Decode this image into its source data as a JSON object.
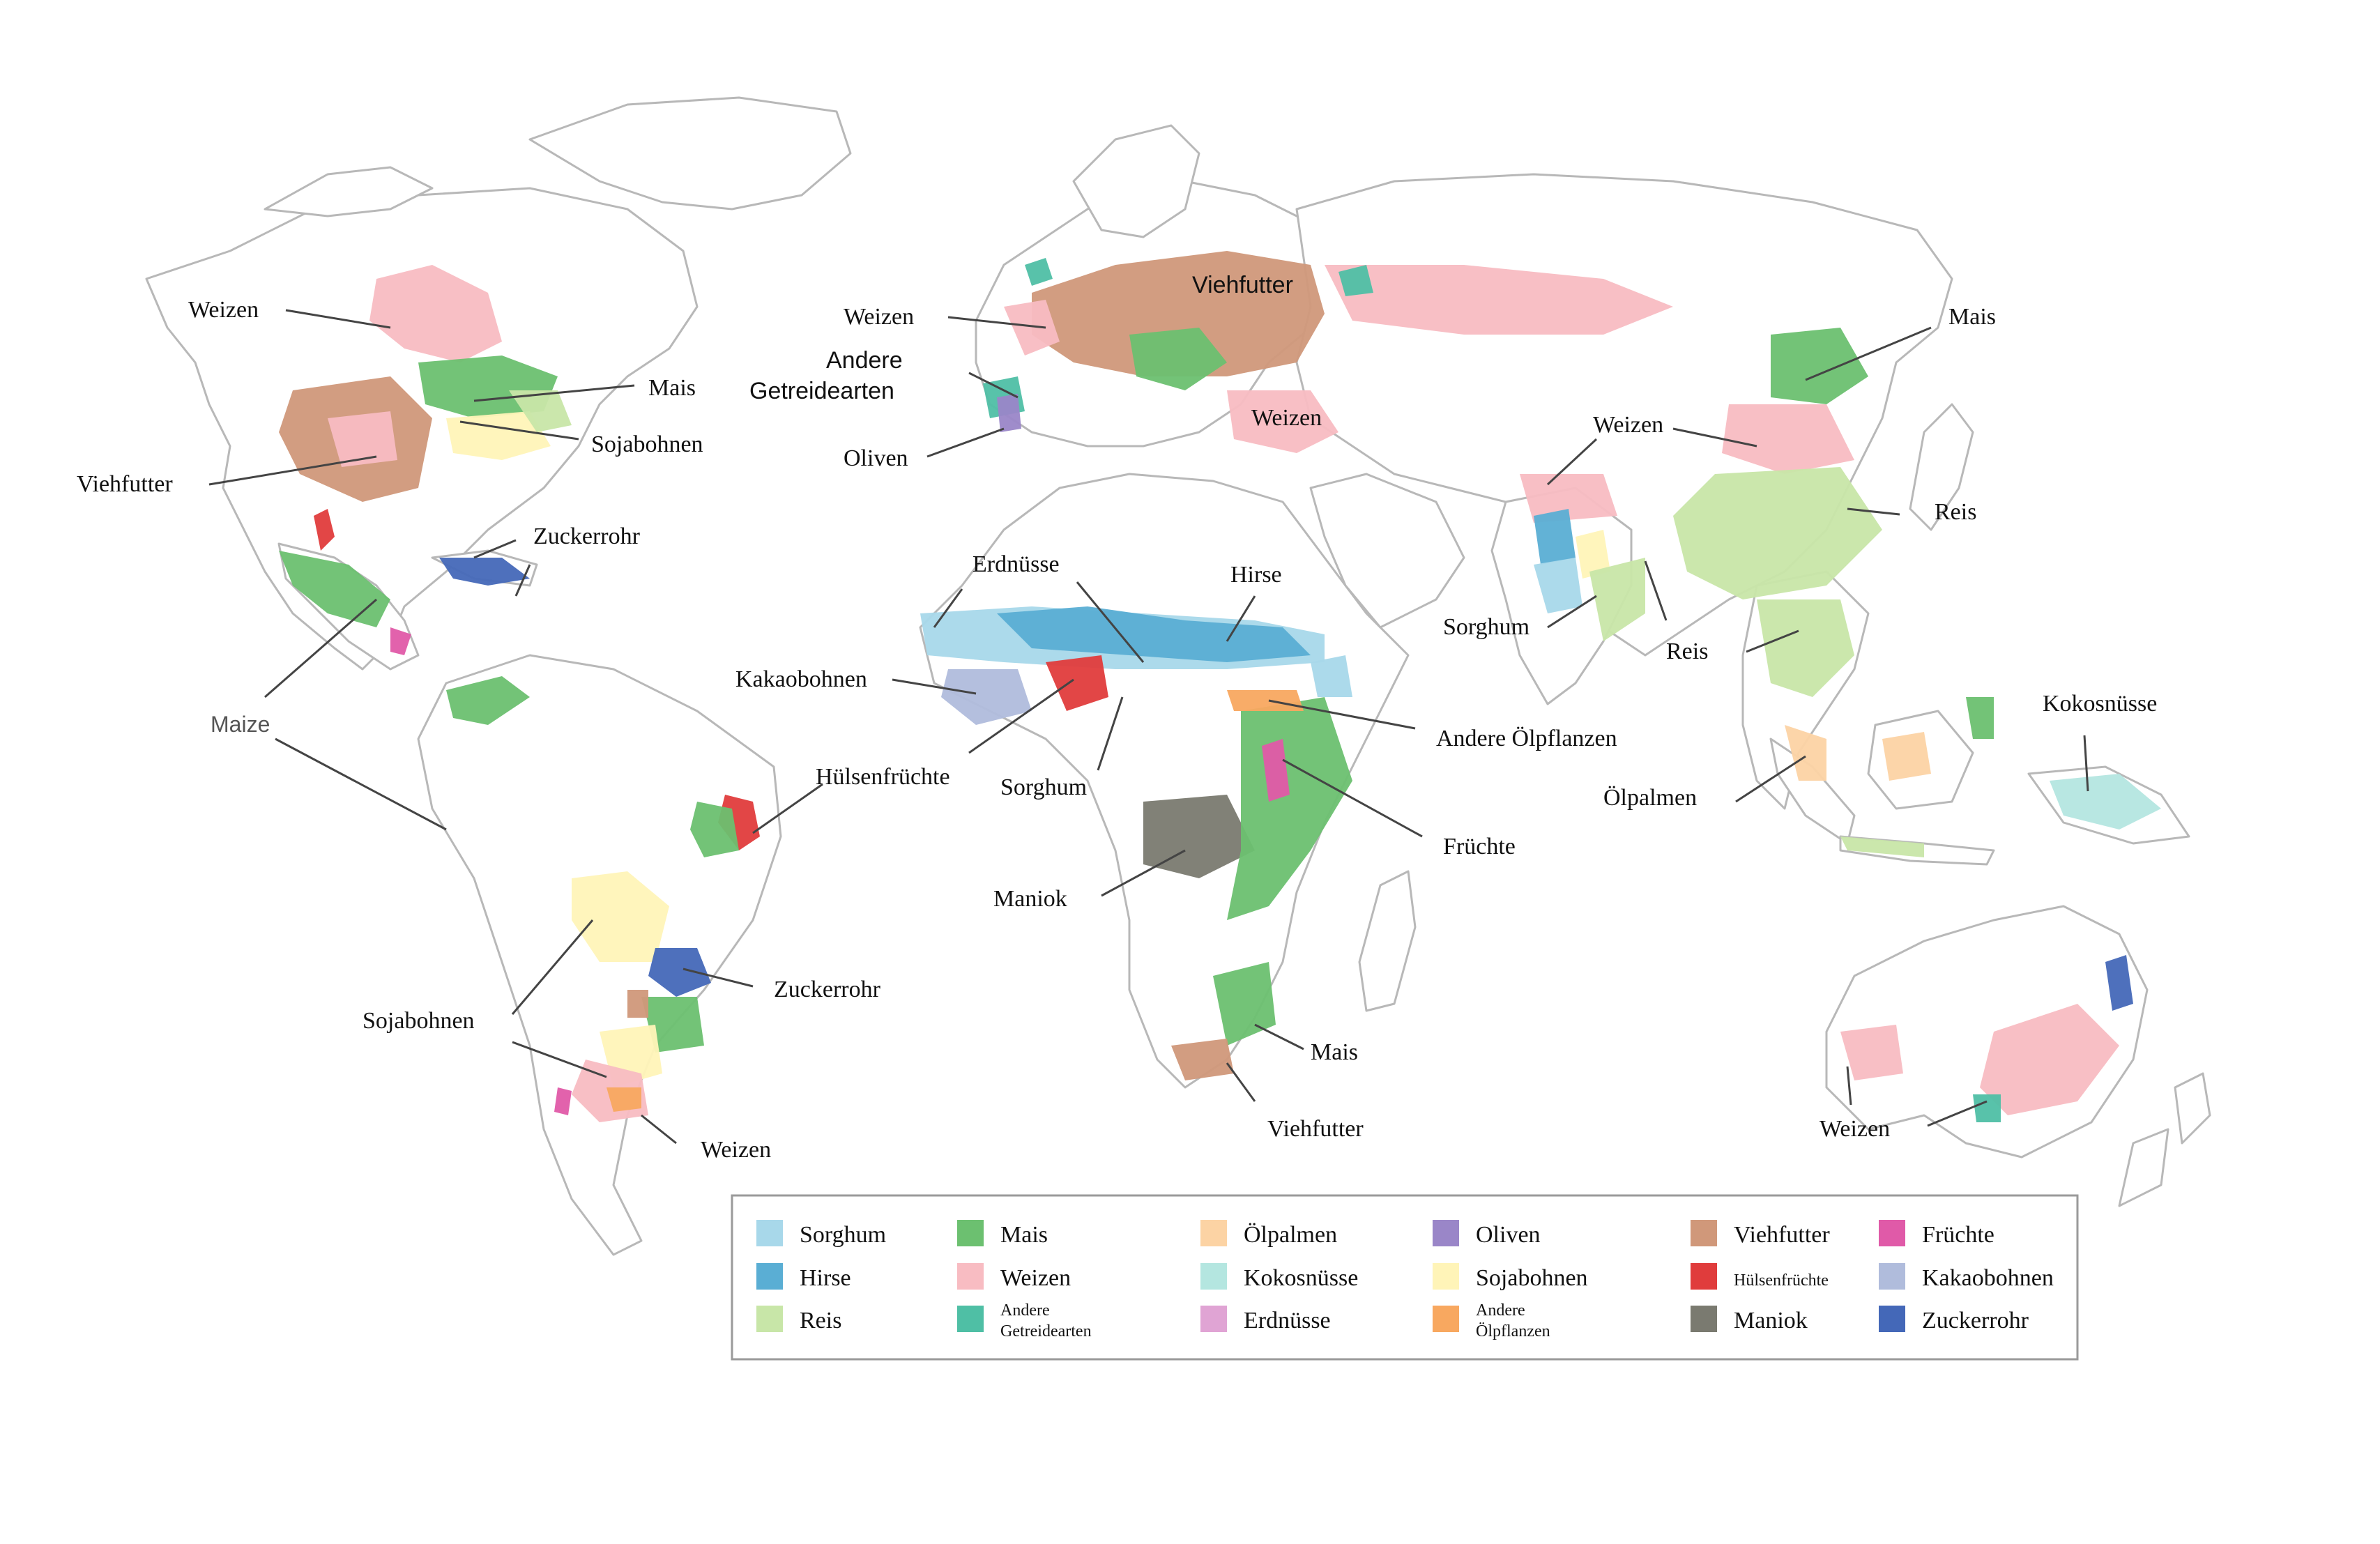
{
  "legend": {
    "items": [
      {
        "key": "sorghum",
        "label": "Sorghum",
        "color": "#a8d8ea"
      },
      {
        "key": "hirse",
        "label": "Hirse",
        "color": "#5aaed4"
      },
      {
        "key": "reis",
        "label": "Reis",
        "color": "#c8e6a8"
      },
      {
        "key": "mais",
        "label": "Mais",
        "color": "#6cc070"
      },
      {
        "key": "weizen",
        "label": "Weizen",
        "color": "#f8bcc2"
      },
      {
        "key": "andere_getreide",
        "label": "Andere Getreidearten",
        "color": "#4fbfa5"
      },
      {
        "key": "oelpalmen",
        "label": "Ölpalmen",
        "color": "#fcd3a4"
      },
      {
        "key": "kokos",
        "label": "Kokosnüsse",
        "color": "#b4e6e0"
      },
      {
        "key": "erdnuesse",
        "label": "Erdnüsse",
        "color": "#e0a4d4"
      },
      {
        "key": "oliven",
        "label": "Oliven",
        "color": "#9a86c8"
      },
      {
        "key": "soja",
        "label": "Sojabohnen",
        "color": "#fff4b8"
      },
      {
        "key": "andere_oel",
        "label": "Andere Ölpflanzen",
        "color": "#f8a860"
      },
      {
        "key": "viehfutter",
        "label": "Viehfutter",
        "color": "#d0987a"
      },
      {
        "key": "huelsen",
        "label": "Hülsenfrüchte",
        "color": "#e03c3c"
      },
      {
        "key": "maniok",
        "label": "Maniok",
        "color": "#7a7a70"
      },
      {
        "key": "fruechte",
        "label": "Früchte",
        "color": "#e05aa8"
      },
      {
        "key": "kakao",
        "label": "Kakaobohnen",
        "color": "#b0bcdc"
      },
      {
        "key": "zucker",
        "label": "Zuckerrohr",
        "color": "#4468b8"
      }
    ],
    "wrapped": {
      "andere_getreide": [
        "Andere",
        "Getreidearten"
      ],
      "andere_oel": [
        "Andere",
        "Ölpflanzen"
      ]
    }
  },
  "labels": {
    "na_weizen": "Weizen",
    "na_mais": "Mais",
    "na_soja": "Sojabohnen",
    "na_viehfutter": "Viehfutter",
    "car_zucker": "Zuckerrohr",
    "ca_maize": "Maize",
    "sa_huelsen": "Hülsenfrüchte",
    "sa_zucker": "Zuckerrohr",
    "sa_soja": "Sojabohnen",
    "sa_weizen": "Weizen",
    "eu_weizen": "Weizen",
    "eu_andere_1": "Andere",
    "eu_andere_2": "Getreidearten",
    "eu_oliven": "Oliven",
    "eu_viehfutter": "Viehfutter",
    "me_weizen": "Weizen",
    "af_erdnuesse": "Erdnüsse",
    "af_hirse": "Hirse",
    "af_kakao": "Kakaobohnen",
    "af_sorghum": "Sorghum",
    "af_andere_oel": "Andere Ölpflanzen",
    "af_fruechte": "Früchte",
    "af_maniok": "Maniok",
    "af_mais": "Mais",
    "af_viehfutter": "Viehfutter",
    "as_weizen": "Weizen",
    "as_mais": "Mais",
    "as_reis_e": "Reis",
    "as_sorghum": "Sorghum",
    "as_reis_s": "Reis",
    "as_kokos": "Kokosnüsse",
    "as_oelpalmen": "Ölpalmen",
    "au_weizen": "Weizen"
  }
}
